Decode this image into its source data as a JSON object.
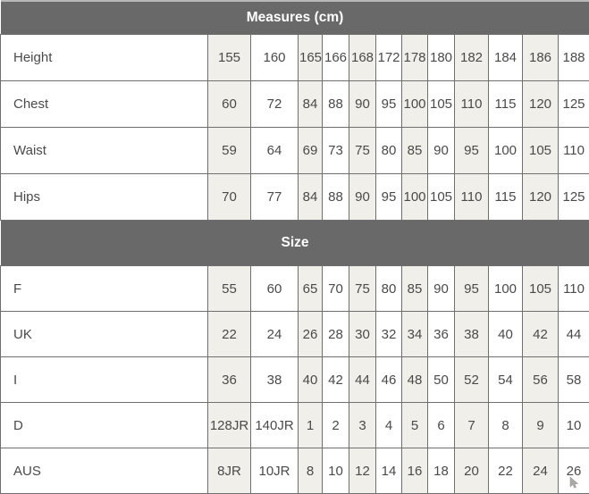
{
  "table": {
    "column_count": 13,
    "sections": [
      {
        "header": "Measures (cm)",
        "rows": [
          {
            "label": "Height",
            "values": [
              "155",
              "160",
              "165",
              "166",
              "168",
              "172",
              "178",
              "180",
              "182",
              "184",
              "186",
              "188"
            ]
          },
          {
            "label": "Chest",
            "values": [
              "60",
              "72",
              "84",
              "88",
              "90",
              "95",
              "100",
              "105",
              "110",
              "115",
              "120",
              "125"
            ]
          },
          {
            "label": "Waist",
            "values": [
              "59",
              "64",
              "69",
              "73",
              "75",
              "80",
              "85",
              "90",
              "95",
              "100",
              "105",
              "110"
            ]
          },
          {
            "label": "Hips",
            "values": [
              "70",
              "77",
              "84",
              "88",
              "90",
              "95",
              "100",
              "105",
              "110",
              "115",
              "120",
              "125"
            ]
          }
        ]
      },
      {
        "header": "Size",
        "rows": [
          {
            "label": "F",
            "values": [
              "55",
              "60",
              "65",
              "70",
              "75",
              "80",
              "85",
              "90",
              "95",
              "100",
              "105",
              "110"
            ]
          },
          {
            "label": "UK",
            "values": [
              "22",
              "24",
              "26",
              "28",
              "30",
              "32",
              "34",
              "36",
              "38",
              "40",
              "42",
              "44"
            ]
          },
          {
            "label": "I",
            "values": [
              "36",
              "38",
              "40",
              "42",
              "44",
              "46",
              "48",
              "50",
              "52",
              "54",
              "56",
              "58"
            ]
          },
          {
            "label": "D",
            "values": [
              "128JR",
              "140JR",
              "1",
              "2",
              "3",
              "4",
              "5",
              "6",
              "7",
              "8",
              "9",
              "10"
            ]
          },
          {
            "label": "AUS",
            "values": [
              "8JR",
              "10JR",
              "8",
              "10",
              "12",
              "14",
              "16",
              "18",
              "20",
              "22",
              "24",
              "26"
            ]
          }
        ]
      }
    ]
  },
  "icons": {
    "cursor": "mouse-pointer-icon"
  },
  "colors": {
    "section_header_bg": "#696969",
    "section_header_text": "#ffffff",
    "cell_border": "#6f6f6f",
    "shaded_column_bg": "#f0efe9",
    "row_bg": "#ffffff",
    "cell_text": "#4a4a4a",
    "page_bg": "#f1f1ef",
    "table_top_line": "#b9b9b9"
  }
}
